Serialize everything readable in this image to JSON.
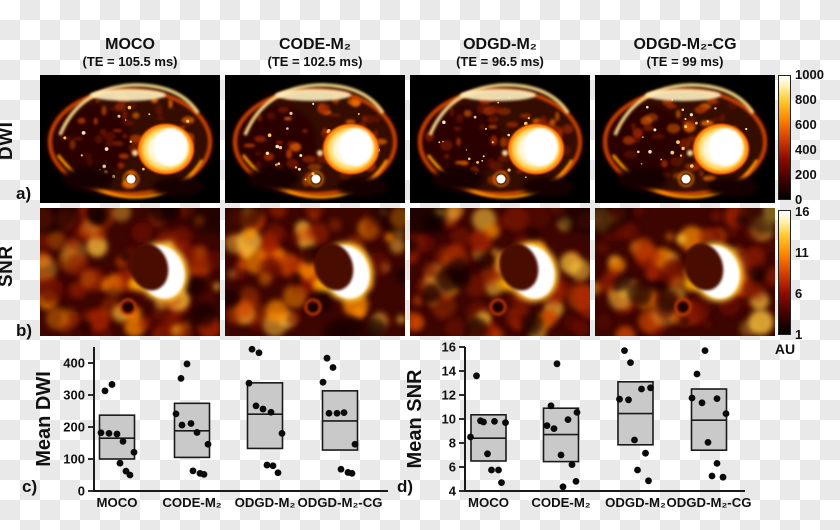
{
  "figure": {
    "columns": [
      {
        "title": "MOCO",
        "te": "(TE = 105.5 ms)"
      },
      {
        "title": "CODE-M₂",
        "te": "(TE = 102.5 ms)"
      },
      {
        "title": "ODGD-M₂",
        "te": "(TE = 96.5 ms)"
      },
      {
        "title": "ODGD-M₂-CG",
        "te": "(TE = 99 ms)"
      }
    ],
    "rows": [
      {
        "label": "DWI",
        "panel": "a)"
      },
      {
        "label": "SNR",
        "panel": "b)"
      }
    ]
  },
  "colorbars": {
    "dwi": {
      "ticks": [
        "1000",
        "800",
        "600",
        "400",
        "200",
        "0"
      ]
    },
    "snr": {
      "ticks": [
        "16",
        "11",
        "6",
        "1"
      ],
      "unit": "AU"
    }
  },
  "colors": {
    "hot_low": "#000000",
    "hot_mid": "#d84200",
    "hot_high": "#ffffff",
    "box_fill": "#c9c9c9",
    "point": "#0a0a0a",
    "axis": "#1a1a1a"
  },
  "chart_data": [
    {
      "type": "box-scatter",
      "panel_label": "c)",
      "ylabel": "Mean DWI",
      "categories": [
        "MOCO",
        "CODE-M₂",
        "ODGD-M₂",
        "ODGD-M₂-CG"
      ],
      "ylim": [
        0,
        450
      ],
      "yticks": [
        0,
        100,
        200,
        300,
        400
      ],
      "grid": false,
      "legend": null,
      "boxes": [
        {
          "low": 100,
          "median": 165,
          "high": 237
        },
        {
          "low": 105,
          "median": 188,
          "high": 274
        },
        {
          "low": 133,
          "median": 240,
          "high": 338
        },
        {
          "low": 128,
          "median": 219,
          "high": 313
        }
      ],
      "points": [
        [
          313,
          333,
          182,
          180,
          178,
          155,
          121,
          87,
          62,
          50
        ],
        [
          397,
          352,
          241,
          206,
          211,
          183,
          146,
          63,
          55,
          52
        ],
        [
          443,
          432,
          337,
          266,
          256,
          246,
          180,
          81,
          79,
          57
        ],
        [
          415,
          386,
          340,
          243,
          243,
          245,
          146,
          68,
          58,
          55
        ]
      ],
      "point_x_offsets": [
        [
          -12,
          -5,
          -16,
          -8,
          0,
          6,
          17,
          3,
          9,
          13
        ],
        [
          -5,
          -11,
          -16,
          -10,
          -1,
          5,
          16,
          1,
          8,
          12
        ],
        [
          -13,
          -6,
          -16,
          -9,
          -2,
          6,
          17,
          2,
          8,
          13
        ],
        [
          -13,
          -7,
          -17,
          -11,
          -3,
          4,
          15,
          1,
          8,
          12
        ]
      ]
    },
    {
      "type": "box-scatter",
      "panel_label": "d)",
      "ylabel": "Mean SNR",
      "categories": [
        "MOCO",
        "CODE-M₂",
        "ODGD-M₂",
        "ODGD-M₂-CG"
      ],
      "ylim": [
        4,
        16
      ],
      "yticks": [
        4,
        6,
        8,
        10,
        12,
        14,
        16
      ],
      "grid": false,
      "legend": null,
      "boxes": [
        {
          "low": 6.5,
          "median": 8.4,
          "high": 10.35
        },
        {
          "low": 6.45,
          "median": 8.7,
          "high": 10.9
        },
        {
          "low": 7.85,
          "median": 10.45,
          "high": 13.1
        },
        {
          "low": 7.4,
          "median": 9.9,
          "high": 12.5
        }
      ],
      "points": [
        [
          13.6,
          8.5,
          9.85,
          9.75,
          9.8,
          9.7,
          7.1,
          5.75,
          5.75,
          4.7
        ],
        [
          14.6,
          11.1,
          9.45,
          9.2,
          9.95,
          10.55,
          7.0,
          6.2,
          4.35,
          4.8
        ],
        [
          15.7,
          14.7,
          11.65,
          11.6,
          12.5,
          12.6,
          8.25,
          7.15,
          5.75,
          4.85
        ],
        [
          15.7,
          13.75,
          11.75,
          11.35,
          11.7,
          10.45,
          8.05,
          6.3,
          5.25,
          5.15
        ]
      ],
      "point_x_offsets": [
        [
          -12,
          -18,
          -8,
          -5,
          6,
          17,
          -1,
          3,
          10,
          13
        ],
        [
          -4,
          -10,
          -14,
          -7,
          7,
          16,
          0,
          11,
          2,
          15
        ],
        [
          -11,
          -5,
          -16,
          -7,
          6,
          15,
          -1,
          10,
          2,
          13
        ],
        [
          -4,
          -12,
          -17,
          -7,
          8,
          17,
          -1,
          8,
          3,
          14
        ]
      ]
    }
  ]
}
